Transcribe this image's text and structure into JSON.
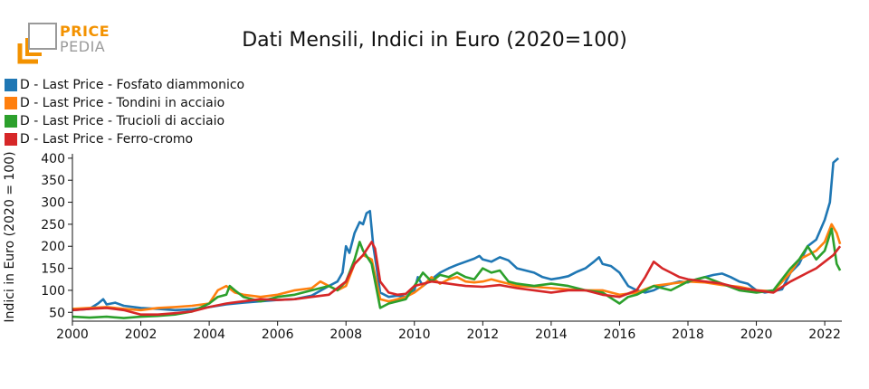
{
  "header": {
    "logo_text_1": "PRICE",
    "logo_text_2": "PEDIA",
    "title": "Dati Mensili, Indici in Euro (2020=100)"
  },
  "colors": {
    "logo_orange": "#f39200",
    "logo_gray": "#9a9a9a"
  },
  "chart_data": {
    "type": "line",
    "title": "Dati Mensili, Indici in Euro (2020=100)",
    "xlabel": "",
    "ylabel": "Indici in Euro (2020 = 100)",
    "xlim": [
      2000,
      2022.5
    ],
    "ylim": [
      30,
      410
    ],
    "x_ticks": [
      "2000",
      "2002",
      "2004",
      "2006",
      "2008",
      "2010",
      "2012",
      "2014",
      "2016",
      "2018",
      "2020",
      "2022"
    ],
    "y_ticks": [
      "50",
      "100",
      "150",
      "200",
      "250",
      "300",
      "350",
      "400"
    ],
    "grid": false,
    "legend_position": "top-left",
    "series": [
      {
        "name": "D - Last Price - Fosfato diammonico",
        "color": "#1f77b4",
        "points": [
          [
            2000,
            55
          ],
          [
            2000.5,
            58
          ],
          [
            2000.75,
            70
          ],
          [
            2000.9,
            80
          ],
          [
            2001.0,
            68
          ],
          [
            2001.25,
            72
          ],
          [
            2001.5,
            65
          ],
          [
            2002,
            60
          ],
          [
            2002.5,
            58
          ],
          [
            2003,
            55
          ],
          [
            2003.5,
            57
          ],
          [
            2004,
            62
          ],
          [
            2004.5,
            68
          ],
          [
            2005,
            72
          ],
          [
            2005.5,
            75
          ],
          [
            2006,
            78
          ],
          [
            2006.5,
            80
          ],
          [
            2007,
            88
          ],
          [
            2007.5,
            110
          ],
          [
            2007.75,
            120
          ],
          [
            2007.9,
            140
          ],
          [
            2008.0,
            200
          ],
          [
            2008.1,
            185
          ],
          [
            2008.25,
            230
          ],
          [
            2008.4,
            255
          ],
          [
            2008.5,
            250
          ],
          [
            2008.6,
            275
          ],
          [
            2008.7,
            280
          ],
          [
            2008.8,
            200
          ],
          [
            2008.9,
            150
          ],
          [
            2009.0,
            95
          ],
          [
            2009.25,
            85
          ],
          [
            2009.5,
            88
          ],
          [
            2009.75,
            85
          ],
          [
            2010.0,
            100
          ],
          [
            2010.1,
            130
          ],
          [
            2010.25,
            110
          ],
          [
            2010.5,
            125
          ],
          [
            2010.75,
            140
          ],
          [
            2011.0,
            150
          ],
          [
            2011.25,
            158
          ],
          [
            2011.5,
            165
          ],
          [
            2011.75,
            172
          ],
          [
            2011.9,
            178
          ],
          [
            2012.0,
            170
          ],
          [
            2012.25,
            165
          ],
          [
            2012.5,
            175
          ],
          [
            2012.75,
            168
          ],
          [
            2013.0,
            150
          ],
          [
            2013.25,
            145
          ],
          [
            2013.5,
            140
          ],
          [
            2013.75,
            130
          ],
          [
            2014.0,
            125
          ],
          [
            2014.25,
            128
          ],
          [
            2014.5,
            132
          ],
          [
            2014.75,
            142
          ],
          [
            2015.0,
            150
          ],
          [
            2015.25,
            165
          ],
          [
            2015.4,
            175
          ],
          [
            2015.5,
            160
          ],
          [
            2015.75,
            155
          ],
          [
            2016.0,
            140
          ],
          [
            2016.25,
            110
          ],
          [
            2016.5,
            100
          ],
          [
            2016.75,
            95
          ],
          [
            2017.0,
            100
          ],
          [
            2017.25,
            110
          ],
          [
            2017.5,
            115
          ],
          [
            2017.75,
            120
          ],
          [
            2018.0,
            118
          ],
          [
            2018.25,
            125
          ],
          [
            2018.5,
            130
          ],
          [
            2018.75,
            135
          ],
          [
            2019.0,
            138
          ],
          [
            2019.25,
            130
          ],
          [
            2019.5,
            120
          ],
          [
            2019.75,
            115
          ],
          [
            2020.0,
            100
          ],
          [
            2020.25,
            95
          ],
          [
            2020.5,
            98
          ],
          [
            2020.75,
            102
          ],
          [
            2021.0,
            140
          ],
          [
            2021.25,
            160
          ],
          [
            2021.5,
            200
          ],
          [
            2021.75,
            215
          ],
          [
            2022.0,
            260
          ],
          [
            2022.15,
            300
          ],
          [
            2022.25,
            390
          ],
          [
            2022.4,
            400
          ]
        ]
      },
      {
        "name": "D - Last Price - Tondini in acciaio",
        "color": "#ff7f0e",
        "points": [
          [
            2000,
            58
          ],
          [
            2000.5,
            60
          ],
          [
            2001,
            62
          ],
          [
            2001.5,
            58
          ],
          [
            2002,
            55
          ],
          [
            2002.5,
            60
          ],
          [
            2003,
            62
          ],
          [
            2003.5,
            65
          ],
          [
            2004,
            70
          ],
          [
            2004.25,
            100
          ],
          [
            2004.5,
            110
          ],
          [
            2004.75,
            95
          ],
          [
            2005.0,
            90
          ],
          [
            2005.5,
            85
          ],
          [
            2006.0,
            90
          ],
          [
            2006.5,
            100
          ],
          [
            2007.0,
            105
          ],
          [
            2007.25,
            120
          ],
          [
            2007.5,
            110
          ],
          [
            2007.75,
            100
          ],
          [
            2008.0,
            110
          ],
          [
            2008.25,
            160
          ],
          [
            2008.5,
            180
          ],
          [
            2008.75,
            170
          ],
          [
            2009.0,
            80
          ],
          [
            2009.25,
            75
          ],
          [
            2009.5,
            80
          ],
          [
            2009.75,
            85
          ],
          [
            2010.0,
            95
          ],
          [
            2010.25,
            110
          ],
          [
            2010.5,
            130
          ],
          [
            2010.75,
            115
          ],
          [
            2011.0,
            125
          ],
          [
            2011.25,
            130
          ],
          [
            2011.5,
            120
          ],
          [
            2011.75,
            118
          ],
          [
            2012.0,
            120
          ],
          [
            2012.25,
            125
          ],
          [
            2012.5,
            120
          ],
          [
            2012.75,
            115
          ],
          [
            2013.0,
            110
          ],
          [
            2013.5,
            108
          ],
          [
            2014.0,
            105
          ],
          [
            2014.5,
            102
          ],
          [
            2015.0,
            100
          ],
          [
            2015.5,
            100
          ],
          [
            2016.0,
            90
          ],
          [
            2016.5,
            95
          ],
          [
            2017.0,
            110
          ],
          [
            2017.5,
            115
          ],
          [
            2018.0,
            120
          ],
          [
            2018.5,
            118
          ],
          [
            2019.0,
            112
          ],
          [
            2019.5,
            108
          ],
          [
            2020.0,
            100
          ],
          [
            2020.5,
            98
          ],
          [
            2021.0,
            140
          ],
          [
            2021.25,
            170
          ],
          [
            2021.5,
            180
          ],
          [
            2021.75,
            190
          ],
          [
            2022.0,
            210
          ],
          [
            2022.2,
            250
          ],
          [
            2022.35,
            230
          ],
          [
            2022.45,
            205
          ]
        ]
      },
      {
        "name": "D - Last Price - Trucioli di acciaio",
        "color": "#2ca02c",
        "points": [
          [
            2000,
            40
          ],
          [
            2000.5,
            38
          ],
          [
            2001,
            40
          ],
          [
            2001.5,
            37
          ],
          [
            2002,
            40
          ],
          [
            2002.5,
            42
          ],
          [
            2003,
            45
          ],
          [
            2003.5,
            52
          ],
          [
            2004,
            70
          ],
          [
            2004.25,
            85
          ],
          [
            2004.5,
            90
          ],
          [
            2004.6,
            110
          ],
          [
            2004.75,
            100
          ],
          [
            2005.0,
            85
          ],
          [
            2005.5,
            75
          ],
          [
            2006.0,
            85
          ],
          [
            2006.5,
            90
          ],
          [
            2007.0,
            100
          ],
          [
            2007.5,
            110
          ],
          [
            2007.75,
            100
          ],
          [
            2008.0,
            120
          ],
          [
            2008.25,
            170
          ],
          [
            2008.4,
            210
          ],
          [
            2008.5,
            190
          ],
          [
            2008.75,
            160
          ],
          [
            2009.0,
            60
          ],
          [
            2009.25,
            70
          ],
          [
            2009.5,
            75
          ],
          [
            2009.75,
            80
          ],
          [
            2010.0,
            110
          ],
          [
            2010.25,
            140
          ],
          [
            2010.5,
            120
          ],
          [
            2010.75,
            135
          ],
          [
            2011.0,
            130
          ],
          [
            2011.25,
            140
          ],
          [
            2011.5,
            130
          ],
          [
            2011.75,
            125
          ],
          [
            2012.0,
            150
          ],
          [
            2012.25,
            140
          ],
          [
            2012.5,
            145
          ],
          [
            2012.75,
            120
          ],
          [
            2013.0,
            115
          ],
          [
            2013.5,
            110
          ],
          [
            2014.0,
            115
          ],
          [
            2014.5,
            110
          ],
          [
            2015.0,
            100
          ],
          [
            2015.5,
            95
          ],
          [
            2016.0,
            70
          ],
          [
            2016.25,
            85
          ],
          [
            2016.5,
            90
          ],
          [
            2017.0,
            110
          ],
          [
            2017.5,
            100
          ],
          [
            2018.0,
            120
          ],
          [
            2018.5,
            130
          ],
          [
            2019.0,
            115
          ],
          [
            2019.5,
            100
          ],
          [
            2020.0,
            95
          ],
          [
            2020.5,
            100
          ],
          [
            2021.0,
            150
          ],
          [
            2021.25,
            170
          ],
          [
            2021.5,
            200
          ],
          [
            2021.75,
            170
          ],
          [
            2022.0,
            190
          ],
          [
            2022.2,
            240
          ],
          [
            2022.35,
            160
          ],
          [
            2022.45,
            145
          ]
        ]
      },
      {
        "name": "D - Last Price - Ferro-cromo",
        "color": "#d62728",
        "points": [
          [
            2000,
            55
          ],
          [
            2000.5,
            58
          ],
          [
            2001,
            60
          ],
          [
            2001.5,
            55
          ],
          [
            2002,
            45
          ],
          [
            2002.5,
            45
          ],
          [
            2003,
            48
          ],
          [
            2003.5,
            52
          ],
          [
            2004,
            62
          ],
          [
            2004.5,
            70
          ],
          [
            2005.0,
            75
          ],
          [
            2005.5,
            80
          ],
          [
            2006.0,
            78
          ],
          [
            2006.5,
            80
          ],
          [
            2007.0,
            85
          ],
          [
            2007.5,
            90
          ],
          [
            2008.0,
            120
          ],
          [
            2008.25,
            160
          ],
          [
            2008.5,
            180
          ],
          [
            2008.75,
            210
          ],
          [
            2008.85,
            195
          ],
          [
            2009.0,
            120
          ],
          [
            2009.25,
            95
          ],
          [
            2009.5,
            90
          ],
          [
            2009.75,
            92
          ],
          [
            2010.0,
            110
          ],
          [
            2010.5,
            120
          ],
          [
            2011.0,
            115
          ],
          [
            2011.5,
            110
          ],
          [
            2012.0,
            108
          ],
          [
            2012.5,
            112
          ],
          [
            2013.0,
            105
          ],
          [
            2013.5,
            100
          ],
          [
            2014.0,
            95
          ],
          [
            2014.5,
            100
          ],
          [
            2015.0,
            100
          ],
          [
            2015.5,
            90
          ],
          [
            2016.0,
            85
          ],
          [
            2016.5,
            100
          ],
          [
            2016.75,
            130
          ],
          [
            2017.0,
            165
          ],
          [
            2017.25,
            150
          ],
          [
            2017.5,
            140
          ],
          [
            2017.75,
            130
          ],
          [
            2018.0,
            125
          ],
          [
            2018.5,
            120
          ],
          [
            2019.0,
            115
          ],
          [
            2019.5,
            105
          ],
          [
            2020.0,
            100
          ],
          [
            2020.5,
            95
          ],
          [
            2021.0,
            120
          ],
          [
            2021.5,
            140
          ],
          [
            2021.75,
            150
          ],
          [
            2022.0,
            165
          ],
          [
            2022.25,
            180
          ],
          [
            2022.45,
            200
          ]
        ]
      }
    ]
  }
}
